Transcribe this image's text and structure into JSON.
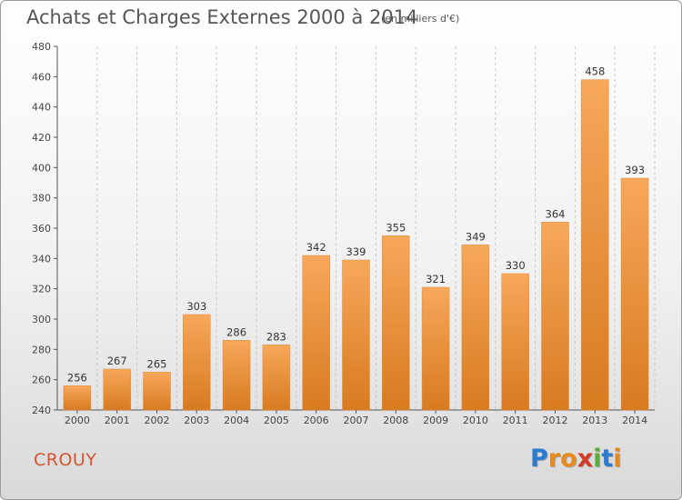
{
  "title": "Achats et Charges Externes 2000 à 2014",
  "subtitle": "(en milliers d'€)",
  "commune": "CROUY",
  "logo": {
    "letters": [
      "P",
      "r",
      "o",
      "x",
      "i",
      "t",
      "i"
    ],
    "colors": [
      "#2b7bd1",
      "#e8891e",
      "#e8891e",
      "#d13b2a",
      "#5aae3a",
      "#2b7bd1",
      "#e8891e"
    ]
  },
  "chart_data": {
    "type": "bar",
    "title": "Achats et Charges Externes 2000 à 2014",
    "subtitle": "(en milliers d'€)",
    "categories": [
      "2000",
      "2001",
      "2002",
      "2003",
      "2004",
      "2005",
      "2006",
      "2007",
      "2008",
      "2009",
      "2010",
      "2011",
      "2012",
      "2013",
      "2014"
    ],
    "values": [
      256,
      267,
      265,
      303,
      286,
      283,
      342,
      339,
      355,
      321,
      349,
      330,
      364,
      458,
      393
    ],
    "ylim": [
      240,
      480
    ],
    "yticks": [
      240,
      260,
      280,
      300,
      320,
      340,
      360,
      380,
      400,
      420,
      440,
      460,
      480
    ],
    "grid": "vertical-dashed",
    "bar_color_top": "#f6a85a",
    "bar_color_bottom": "#d97a20"
  }
}
